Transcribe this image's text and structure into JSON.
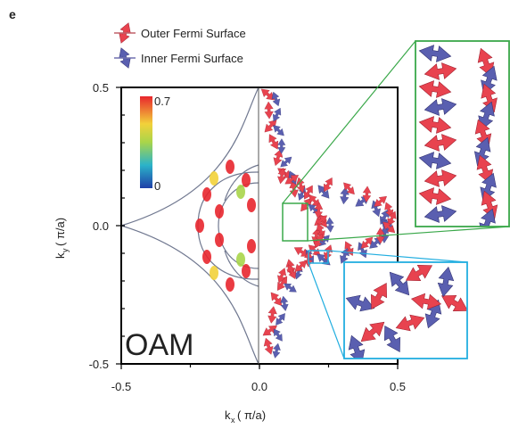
{
  "panel_label": "e",
  "legend": {
    "outer": "Outer Fermi Surface",
    "inner": "Inner Fermi Surface"
  },
  "watermark": "OAM",
  "colorbar": {
    "max_label": "0.7",
    "min_label": "0"
  },
  "colors": {
    "outer_arrow": "#e8434f",
    "inner_arrow": "#5a5fb0",
    "zoom_green": "#3aa84a",
    "zoom_blue": "#22aee0"
  },
  "chart_data": {
    "type": "scatter",
    "title": "",
    "xlabel": "k_x (π/a)",
    "ylabel": "k_y (π/a)",
    "xlim": [
      -0.5,
      0.5
    ],
    "ylim": [
      -0.5,
      0.5
    ],
    "xticks": [
      -0.5,
      0.0,
      0.5
    ],
    "xtick_labels": [
      "-0.5",
      "0.0",
      "0.5"
    ],
    "yticks": [
      -0.5,
      0.0,
      0.5
    ],
    "ytick_labels": [
      "-0.5",
      "0.0",
      "0.5"
    ],
    "colorbar": {
      "min": 0,
      "max": 0.7,
      "quantity": "OAM"
    },
    "grid": false,
    "legend_position": "top-left",
    "series": [
      {
        "name": "Outer Fermi Surface",
        "marker": "red double arrow"
      },
      {
        "name": "Inner Fermi Surface",
        "marker": "blue double arrow"
      }
    ]
  }
}
